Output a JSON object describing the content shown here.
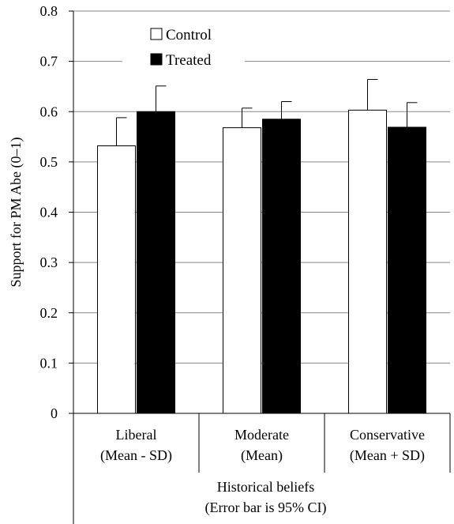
{
  "chart_data": {
    "type": "bar",
    "title": "",
    "ylabel": "Support for PM Abe (0–1)",
    "xlabel_lines": [
      "Historical beliefs",
      "(Error bar is 95% CI)"
    ],
    "ylim": [
      0,
      0.8
    ],
    "yticks": [
      0,
      0.1,
      0.2,
      0.3,
      0.4,
      0.5,
      0.6,
      0.7,
      0.8
    ],
    "ytick_labels": [
      "0",
      "0.1",
      "0.2",
      "0.3",
      "0.4",
      "0.5",
      "0.6",
      "0.7",
      "0.8"
    ],
    "categories": [
      [
        "Liberal",
        "(Mean - SD)"
      ],
      [
        "Moderate",
        "(Mean)"
      ],
      [
        "Conservative",
        "(Mean + SD)"
      ]
    ],
    "series": [
      {
        "name": "Control",
        "color": "#ffffff",
        "values": [
          0.532,
          0.568,
          0.603
        ],
        "ci_upper": [
          0.588,
          0.607,
          0.664
        ]
      },
      {
        "name": "Treated",
        "color": "#000000",
        "values": [
          0.6,
          0.585,
          0.569
        ],
        "ci_upper": [
          0.651,
          0.62,
          0.618
        ]
      }
    ],
    "grid": true,
    "legend_position": "top-left"
  }
}
